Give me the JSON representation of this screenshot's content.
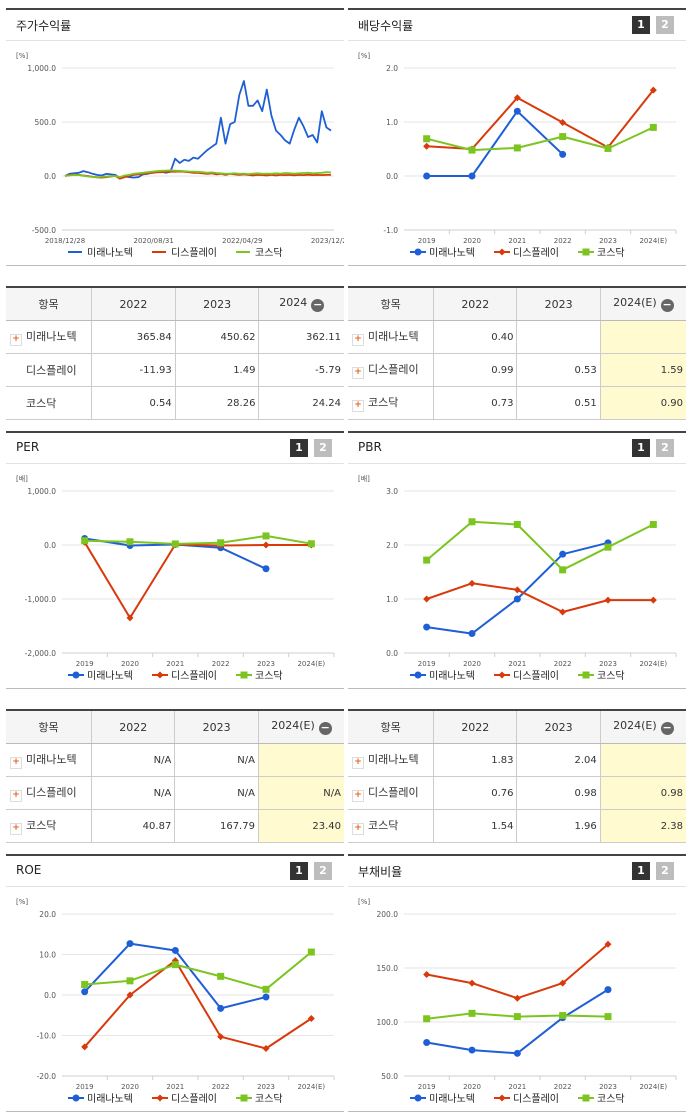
{
  "colors": {
    "s1": "#1f5fd6",
    "s2": "#d83a0c",
    "s3": "#7cc520"
  },
  "chart_data": [
    {
      "type": "line",
      "title": "주가수익률",
      "unit": "[%]",
      "ylim": [
        -500,
        1000
      ],
      "yticks": [
        "1,000.0",
        "500.0",
        "0.0",
        "-500.0"
      ],
      "xticks": [
        "2018/12/28",
        "2020/08/31",
        "2022/04/29",
        "2023/12/28"
      ],
      "legend": [
        "미래나노텍",
        "디스플레이",
        "코스닥"
      ],
      "series": [
        {
          "name": "미래나노텍",
          "values": [
            0,
            20,
            25,
            30,
            45,
            35,
            20,
            10,
            5,
            20,
            15,
            10,
            -20,
            -5,
            -10,
            -15,
            -10,
            15,
            20,
            30,
            35,
            40,
            30,
            40,
            160,
            120,
            150,
            140,
            170,
            160,
            200,
            240,
            270,
            300,
            540,
            300,
            480,
            500,
            750,
            880,
            650,
            650,
            700,
            600,
            800,
            560,
            420,
            380,
            330,
            300,
            430,
            540,
            460,
            360,
            380,
            310,
            600,
            450,
            420
          ]
        },
        {
          "name": "디스플레이",
          "values": [
            0,
            8,
            12,
            10,
            5,
            0,
            -8,
            -12,
            -15,
            -10,
            -5,
            0,
            -25,
            -10,
            0,
            10,
            15,
            20,
            25,
            30,
            35,
            35,
            38,
            40,
            40,
            42,
            40,
            35,
            30,
            30,
            25,
            20,
            25,
            15,
            20,
            10,
            20,
            15,
            10,
            15,
            10,
            5,
            10,
            8,
            5,
            10,
            5,
            10,
            8,
            10,
            6,
            10,
            8,
            12,
            8,
            10,
            8,
            10,
            10
          ]
        },
        {
          "name": "코스닥",
          "values": [
            0,
            5,
            10,
            8,
            2,
            -5,
            -8,
            -10,
            -8,
            -5,
            -2,
            0,
            -10,
            5,
            10,
            20,
            25,
            30,
            35,
            40,
            45,
            48,
            50,
            52,
            50,
            48,
            45,
            42,
            40,
            38,
            35,
            30,
            33,
            28,
            25,
            20,
            22,
            25,
            20,
            22,
            18,
            22,
            25,
            20,
            22,
            20,
            25,
            22,
            28,
            25,
            22,
            25,
            28,
            30,
            25,
            28,
            30,
            35,
            32
          ]
        }
      ]
    },
    {
      "type": "line",
      "title": "배당수익률",
      "unit": "[%]",
      "ylim": [
        -1,
        2
      ],
      "yticks": [
        "2.0",
        "1.0",
        "0.0",
        "-1.0"
      ],
      "categories": [
        "2019",
        "2020",
        "2021",
        "2022",
        "2023",
        "2024(E)"
      ],
      "legend": [
        "미래나노텍",
        "디스플레이",
        "코스닥"
      ],
      "series": [
        {
          "name": "미래나노텍",
          "values": [
            0,
            0,
            1.2,
            0.4,
            null,
            null
          ]
        },
        {
          "name": "디스플레이",
          "values": [
            0.55,
            0.5,
            1.45,
            0.99,
            0.53,
            1.59
          ]
        },
        {
          "name": "코스닥",
          "values": [
            0.69,
            0.48,
            0.52,
            0.73,
            0.51,
            0.9
          ]
        }
      ]
    },
    {
      "type": "line",
      "title": "PER",
      "unit": "[배]",
      "ylim": [
        -2000,
        1000
      ],
      "yticks": [
        "1,000.0",
        "0.0",
        "-1,000.0",
        "-2,000.0"
      ],
      "categories": [
        "2019",
        "2020",
        "2021",
        "2022",
        "2023",
        "2024(E)"
      ],
      "legend": [
        "미래나노텍",
        "디스플레이",
        "코스닥"
      ],
      "series": [
        {
          "name": "미래나노텍",
          "values": [
            120,
            -10,
            10,
            -50,
            -440,
            null
          ]
        },
        {
          "name": "디스플레이",
          "values": [
            50,
            -1350,
            10,
            -10,
            0,
            0
          ]
        },
        {
          "name": "코스닥",
          "values": [
            80,
            60,
            20,
            40.87,
            167.79,
            23.4
          ]
        }
      ]
    },
    {
      "type": "line",
      "title": "PBR",
      "unit": "[배]",
      "ylim": [
        0,
        3
      ],
      "yticks": [
        "3.0",
        "2.0",
        "1.0",
        "0.0"
      ],
      "categories": [
        "2019",
        "2020",
        "2021",
        "2022",
        "2023",
        "2024(E)"
      ],
      "legend": [
        "미래나노텍",
        "디스플레이",
        "코스닥"
      ],
      "series": [
        {
          "name": "미래나노텍",
          "values": [
            0.48,
            0.36,
            1.0,
            1.83,
            2.04,
            null
          ]
        },
        {
          "name": "디스플레이",
          "values": [
            1.0,
            1.29,
            1.17,
            0.76,
            0.98,
            0.98
          ]
        },
        {
          "name": "코스닥",
          "values": [
            1.72,
            2.43,
            2.38,
            1.54,
            1.96,
            2.38
          ]
        }
      ]
    },
    {
      "type": "line",
      "title": "ROE",
      "unit": "[%]",
      "ylim": [
        -20,
        20
      ],
      "yticks": [
        "20.0",
        "10.0",
        "0.0",
        "-10.0",
        "-20.0"
      ],
      "categories": [
        "2019",
        "2020",
        "2021",
        "2022",
        "2023",
        "2024(E)"
      ],
      "legend": [
        "미래나노텍",
        "디스플레이",
        "코스닥"
      ],
      "series": [
        {
          "name": "미래나노텍",
          "values": [
            0.8,
            12.7,
            11.0,
            -3.3,
            -0.5,
            null
          ]
        },
        {
          "name": "디스플레이",
          "values": [
            -12.8,
            0,
            8.5,
            -10.3,
            -13.2,
            -5.8
          ]
        },
        {
          "name": "코스닥",
          "values": [
            2.6,
            3.5,
            7.5,
            4.6,
            1.4,
            10.6
          ]
        }
      ]
    },
    {
      "type": "line",
      "title": "부채비율",
      "unit": "[%]",
      "ylim": [
        50,
        200
      ],
      "yticks": [
        "200.0",
        "150.0",
        "100.0",
        "50.0"
      ],
      "categories": [
        "2019",
        "2020",
        "2021",
        "2022",
        "2023",
        "2024(E)"
      ],
      "legend": [
        "미래나노텍",
        "디스플레이",
        "코스닥"
      ],
      "series": [
        {
          "name": "미래나노텍",
          "values": [
            81,
            74,
            71,
            104,
            130,
            null
          ]
        },
        {
          "name": "디스플레이",
          "values": [
            144,
            136,
            122,
            136,
            172,
            null
          ]
        },
        {
          "name": "코스닥",
          "values": [
            103,
            108,
            105,
            106,
            105,
            null
          ]
        }
      ]
    }
  ],
  "tables": [
    {
      "header": [
        "항목",
        "2022",
        "2023",
        "2024"
      ],
      "header_minus": true,
      "rows": [
        {
          "name": "미래나노텍",
          "plus": true,
          "v": [
            "365.84",
            "450.62",
            "362.11"
          ],
          "hl": [
            false,
            false,
            false
          ]
        },
        {
          "name": "디스플레이",
          "plus": false,
          "v": [
            "-11.93",
            "1.49",
            "-5.79"
          ],
          "hl": [
            false,
            false,
            false
          ]
        },
        {
          "name": "코스닥",
          "plus": false,
          "v": [
            "0.54",
            "28.26",
            "24.24"
          ],
          "hl": [
            false,
            false,
            false
          ]
        }
      ]
    },
    {
      "header": [
        "항목",
        "2022",
        "2023",
        "2024(E)"
      ],
      "header_minus": true,
      "rows": [
        {
          "name": "미래나노텍",
          "plus": true,
          "v": [
            "0.40",
            "",
            ""
          ],
          "hl": [
            false,
            false,
            true
          ]
        },
        {
          "name": "디스플레이",
          "plus": true,
          "v": [
            "0.99",
            "0.53",
            "1.59"
          ],
          "hl": [
            false,
            false,
            true
          ]
        },
        {
          "name": "코스닥",
          "plus": true,
          "v": [
            "0.73",
            "0.51",
            "0.90"
          ],
          "hl": [
            false,
            false,
            true
          ]
        }
      ]
    },
    {
      "header": [
        "항목",
        "2022",
        "2023",
        "2024(E)"
      ],
      "header_minus": true,
      "rows": [
        {
          "name": "미래나노텍",
          "plus": true,
          "v": [
            "N/A",
            "N/A",
            ""
          ],
          "hl": [
            false,
            false,
            true
          ]
        },
        {
          "name": "디스플레이",
          "plus": true,
          "v": [
            "N/A",
            "N/A",
            "N/A"
          ],
          "hl": [
            false,
            false,
            true
          ]
        },
        {
          "name": "코스닥",
          "plus": true,
          "v": [
            "40.87",
            "167.79",
            "23.40"
          ],
          "hl": [
            false,
            false,
            true
          ]
        }
      ]
    },
    {
      "header": [
        "항목",
        "2022",
        "2023",
        "2024(E)"
      ],
      "header_minus": true,
      "rows": [
        {
          "name": "미래나노텍",
          "plus": true,
          "v": [
            "1.83",
            "2.04",
            ""
          ],
          "hl": [
            false,
            false,
            true
          ]
        },
        {
          "name": "디스플레이",
          "plus": true,
          "v": [
            "0.76",
            "0.98",
            "0.98"
          ],
          "hl": [
            false,
            false,
            true
          ]
        },
        {
          "name": "코스닥",
          "plus": true,
          "v": [
            "1.54",
            "1.96",
            "2.38"
          ],
          "hl": [
            false,
            false,
            true
          ]
        }
      ]
    }
  ],
  "pager": {
    "p1": "1",
    "p2": "2"
  },
  "minus_symbol": "−",
  "plus_symbol": "+"
}
